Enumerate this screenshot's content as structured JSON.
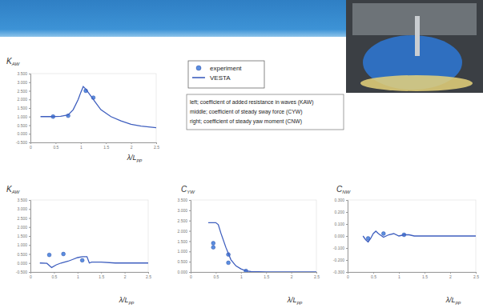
{
  "chart_data": [
    {
      "type": "line",
      "ylabel": "KAW",
      "xlabel": "λ/Lpp",
      "xlim": [
        0,
        2.5
      ],
      "xticks": [
        0,
        0.5,
        1,
        1.5,
        2,
        2.5
      ],
      "ylim": [
        -0.5,
        3.5
      ],
      "yticks": [
        {
          "value": -0.5,
          "label": "-0.500"
        },
        {
          "value": 0,
          "label": "0.000"
        },
        {
          "value": 0.5,
          "label": "0.500"
        },
        {
          "value": 1,
          "label": "1.000"
        },
        {
          "value": 1.5,
          "label": "1.500"
        },
        {
          "value": 2,
          "label": "2.000"
        },
        {
          "value": 2.5,
          "label": "2.500"
        },
        {
          "value": 3,
          "label": "3.000"
        },
        {
          "value": 3.5,
          "label": "3.500"
        }
      ],
      "legend": "right",
      "annotations": [
        "left; coefficient of added resistance in waves (KAW)",
        "middle; coefficient of steady sway force (CYW)",
        "right; coefficient of steady yaw moment (CNW)"
      ],
      "series": [
        {
          "name": "experiment",
          "type": "scatter",
          "marker": "circle",
          "color": "#5b8ee0",
          "x": [
            0.45,
            0.75,
            1.1,
            1.25
          ],
          "values": [
            1.0,
            1.05,
            2.5,
            2.1
          ]
        },
        {
          "name": "VESTA",
          "type": "line",
          "line_style": "solid",
          "color": "#3f5fbf",
          "x": [
            0.2,
            0.4,
            0.6,
            0.75,
            0.85,
            0.95,
            1.0,
            1.05,
            1.1,
            1.2,
            1.3,
            1.4,
            1.6,
            1.8,
            2.0,
            2.2,
            2.5
          ],
          "values": [
            1.0,
            1.0,
            1.02,
            1.1,
            1.4,
            2.0,
            2.4,
            2.75,
            2.6,
            2.2,
            1.8,
            1.4,
            1.0,
            0.75,
            0.55,
            0.45,
            0.35
          ]
        }
      ]
    },
    {
      "type": "line",
      "ylabel": "KAW",
      "xlabel": "λ/Lpp",
      "xlim": [
        0,
        2.5
      ],
      "xticks": [
        0,
        0.5,
        1,
        1.5,
        2,
        2.5
      ],
      "ylim": [
        -0.5,
        3.5
      ],
      "yticks": [
        {
          "value": -0.5,
          "label": "-0.500"
        },
        {
          "value": 0,
          "label": "0.000"
        },
        {
          "value": 0.5,
          "label": "0.500"
        },
        {
          "value": 1,
          "label": "1.000"
        },
        {
          "value": 1.5,
          "label": "1.500"
        },
        {
          "value": 2,
          "label": "2.000"
        },
        {
          "value": 2.5,
          "label": "2.500"
        },
        {
          "value": 3,
          "label": "3.000"
        },
        {
          "value": 3.5,
          "label": "3.500"
        }
      ],
      "series": [
        {
          "type": "scatter",
          "marker": "circle",
          "color": "#5b8ee0",
          "x": [
            0.4,
            0.7,
            1.1
          ],
          "values": [
            0.45,
            0.5,
            0.15
          ]
        },
        {
          "type": "line",
          "line_style": "solid",
          "color": "#3f5fbf",
          "x": [
            0.2,
            0.35,
            0.45,
            0.55,
            0.65,
            0.8,
            0.9,
            1.0,
            1.1,
            1.2,
            1.25,
            1.3,
            1.5,
            1.8,
            2.2,
            2.5
          ],
          "values": [
            0.0,
            -0.02,
            -0.25,
            -0.1,
            0.0,
            0.1,
            0.2,
            0.3,
            0.35,
            0.35,
            0.0,
            0.05,
            0.05,
            0.0,
            0.0,
            0.0
          ]
        }
      ]
    },
    {
      "type": "line",
      "ylabel": "CYW",
      "xlabel": "λ/Lpp",
      "xlim": [
        0,
        2.5
      ],
      "xticks": [
        0,
        0.5,
        1,
        1.5,
        2,
        2.5
      ],
      "ylim": [
        0,
        3.5
      ],
      "yticks": [
        {
          "value": 0,
          "label": "0.000"
        },
        {
          "value": 0.5,
          "label": "0.500"
        },
        {
          "value": 1,
          "label": "1.000"
        },
        {
          "value": 1.5,
          "label": "1.500"
        },
        {
          "value": 2,
          "label": "2.000"
        },
        {
          "value": 2.5,
          "label": "2.500"
        },
        {
          "value": 3,
          "label": "3.000"
        },
        {
          "value": 3.5,
          "label": "3.500"
        }
      ],
      "series": [
        {
          "type": "scatter",
          "marker": "circle",
          "color": "#5b8ee0",
          "x": [
            0.45,
            0.45,
            0.75,
            0.75,
            1.1
          ],
          "values": [
            1.4,
            1.2,
            0.85,
            0.45,
            0.05
          ]
        },
        {
          "type": "line",
          "line_style": "solid",
          "color": "#3f5fbf",
          "x": [
            0.35,
            0.5,
            0.55,
            0.6,
            0.7,
            0.8,
            0.9,
            1.0,
            1.1,
            1.2,
            1.5,
            2.0,
            2.5
          ],
          "values": [
            2.4,
            2.4,
            2.3,
            1.9,
            1.2,
            0.6,
            0.3,
            0.15,
            0.05,
            0.02,
            0.0,
            0.0,
            0.0
          ]
        }
      ]
    },
    {
      "type": "line",
      "ylabel": "CNW",
      "xlabel": "λ/Lpp",
      "xlim": [
        0,
        2.5
      ],
      "xticks": [
        0,
        0.5,
        1,
        1.5,
        2,
        2.5
      ],
      "ylim": [
        -0.3,
        0.3
      ],
      "yticks": [
        {
          "value": -0.3,
          "label": "-0.300"
        },
        {
          "value": -0.2,
          "label": "-0.200"
        },
        {
          "value": -0.1,
          "label": "-0.100"
        },
        {
          "value": 0,
          "label": "0.000"
        },
        {
          "value": 0.1,
          "label": "0.100"
        },
        {
          "value": 0.2,
          "label": "0.200"
        },
        {
          "value": 0.3,
          "label": "0.300"
        }
      ],
      "series": [
        {
          "type": "scatter",
          "marker": "circle",
          "color": "#5b8ee0",
          "x": [
            0.4,
            0.7,
            1.1
          ],
          "values": [
            -0.02,
            0.02,
            0.01
          ]
        },
        {
          "type": "line",
          "line_style": "solid",
          "color": "#3f5fbf",
          "x": [
            0.3,
            0.35,
            0.4,
            0.45,
            0.5,
            0.55,
            0.6,
            0.7,
            0.8,
            0.9,
            1.0,
            1.1,
            1.2,
            1.3,
            1.5,
            2.0,
            2.5
          ],
          "values": [
            0.0,
            -0.03,
            -0.05,
            -0.02,
            0.02,
            0.04,
            0.02,
            -0.01,
            0.01,
            0.02,
            0.0,
            0.01,
            0.01,
            0.0,
            0.0,
            0.0,
            0.0
          ]
        }
      ]
    }
  ]
}
